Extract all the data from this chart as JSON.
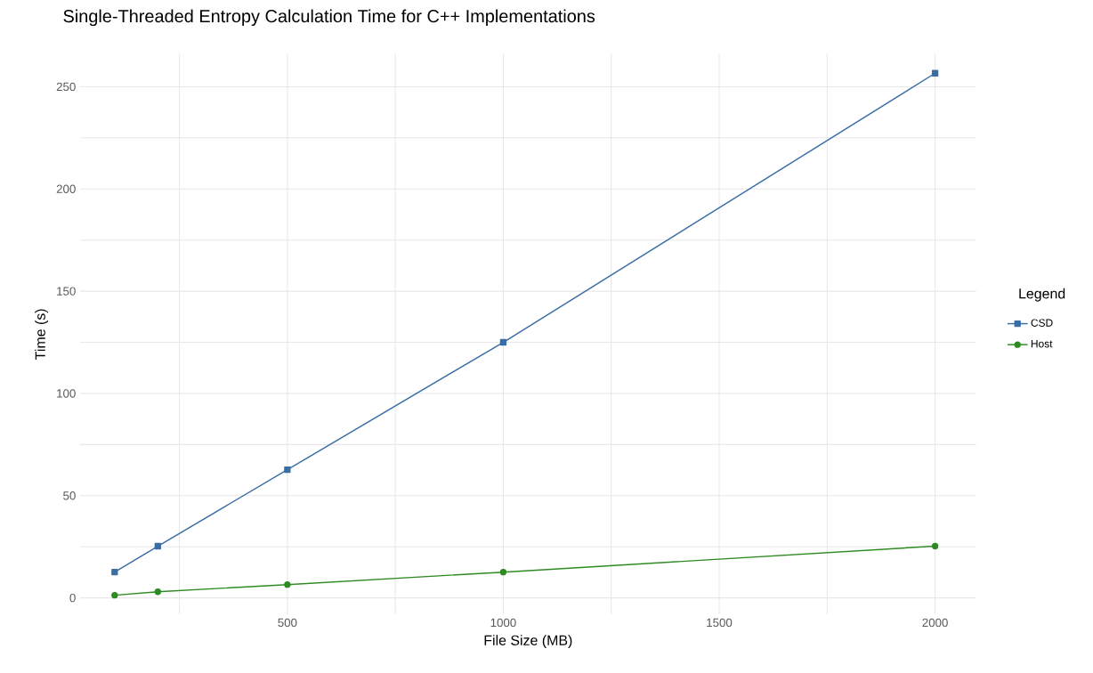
{
  "chart_data": {
    "type": "line",
    "title": "Single-Threaded Entropy Calculation Time for C++ Implementations",
    "xlabel": "File Size (MB)",
    "ylabel": "Time (s)",
    "legend_title": "Legend",
    "x": [
      100,
      200,
      500,
      1000,
      2000
    ],
    "series": [
      {
        "name": "CSD",
        "color": "#3a6ea5",
        "marker": "square",
        "values": [
          12.6,
          25.3,
          62.7,
          125,
          256.6
        ]
      },
      {
        "name": "Host",
        "color": "#2e8b22",
        "marker": "circle",
        "values": [
          1.3,
          3,
          6.5,
          12.6,
          25.3
        ]
      }
    ],
    "xlim": [
      20,
      2095
    ],
    "ylim": [
      -8,
      266
    ],
    "xticks": [
      {
        "value": 250,
        "label": null
      },
      500,
      {
        "value": 750,
        "label": null
      },
      1000,
      {
        "value": 1250,
        "label": null
      },
      1500,
      {
        "value": 1750,
        "label": null
      },
      2000
    ],
    "yticks": [
      0,
      {
        "value": 25,
        "label": null
      },
      50,
      {
        "value": 75,
        "label": null
      },
      100,
      {
        "value": 125,
        "label": null
      },
      150,
      {
        "value": 175,
        "label": null
      },
      200,
      {
        "value": 225,
        "label": null
      },
      250
    ],
    "grid": true,
    "legend": "right",
    "line_style": "solid"
  }
}
